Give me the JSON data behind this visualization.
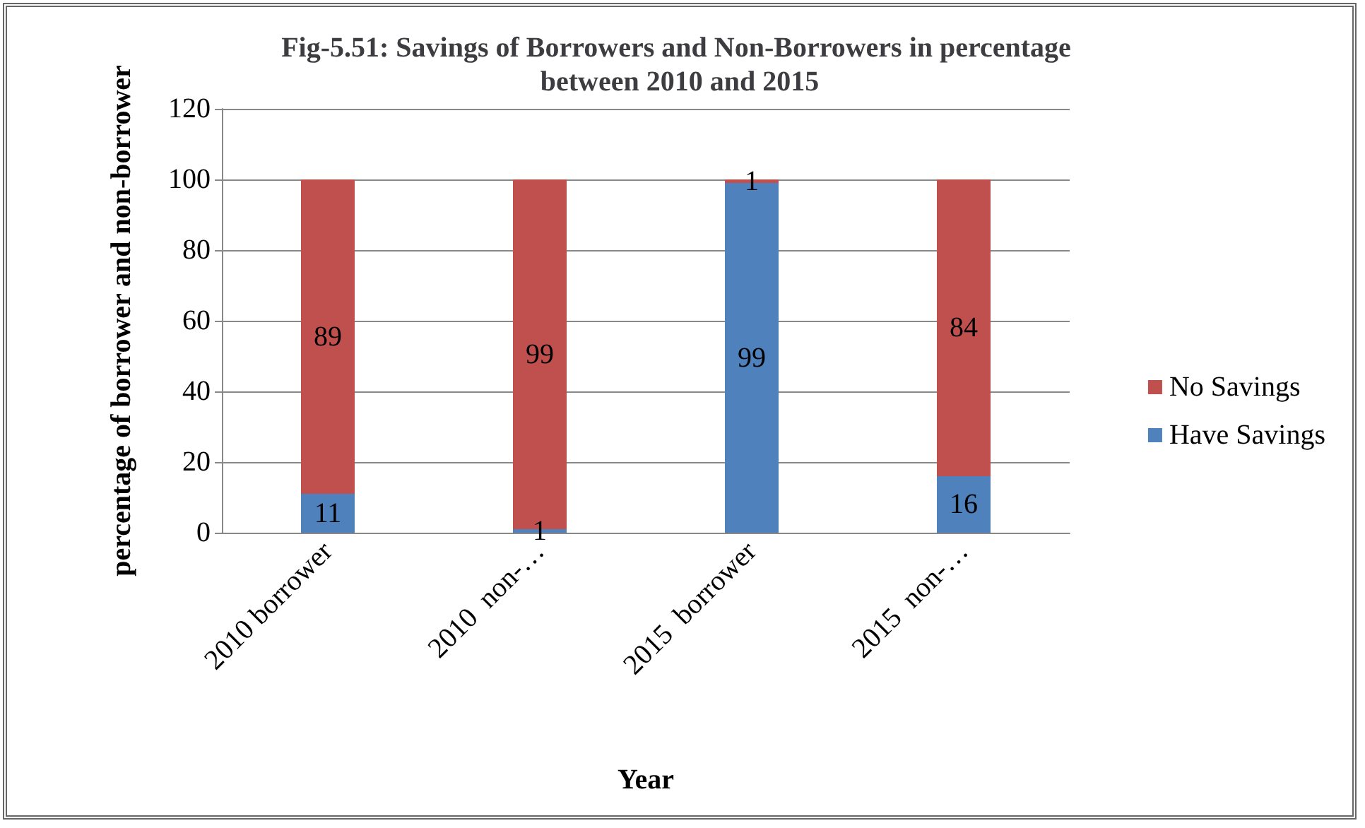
{
  "chart_data": {
    "type": "bar",
    "title": "Fig-5.51: Savings of Borrowers and Non-Borrowers in percentage between 2010 and 2015",
    "xlabel": "Year",
    "ylabel": "percentage of borrower and non-borrower",
    "categories": [
      "2010 borrower",
      "2010  non-…",
      "2015  borrower",
      "2015  non-…"
    ],
    "series": [
      {
        "name": "Have Savings",
        "color": "#4f81bd",
        "values": [
          11,
          1,
          99,
          16
        ]
      },
      {
        "name": "No Savings",
        "color": "#c0504d",
        "values": [
          89,
          99,
          1,
          84
        ]
      }
    ],
    "stacked": true,
    "data_labels": true,
    "ylim": [
      0,
      120
    ],
    "yticks": [
      0,
      20,
      40,
      60,
      80,
      100,
      120
    ],
    "grid": "y",
    "legend": "right"
  }
}
